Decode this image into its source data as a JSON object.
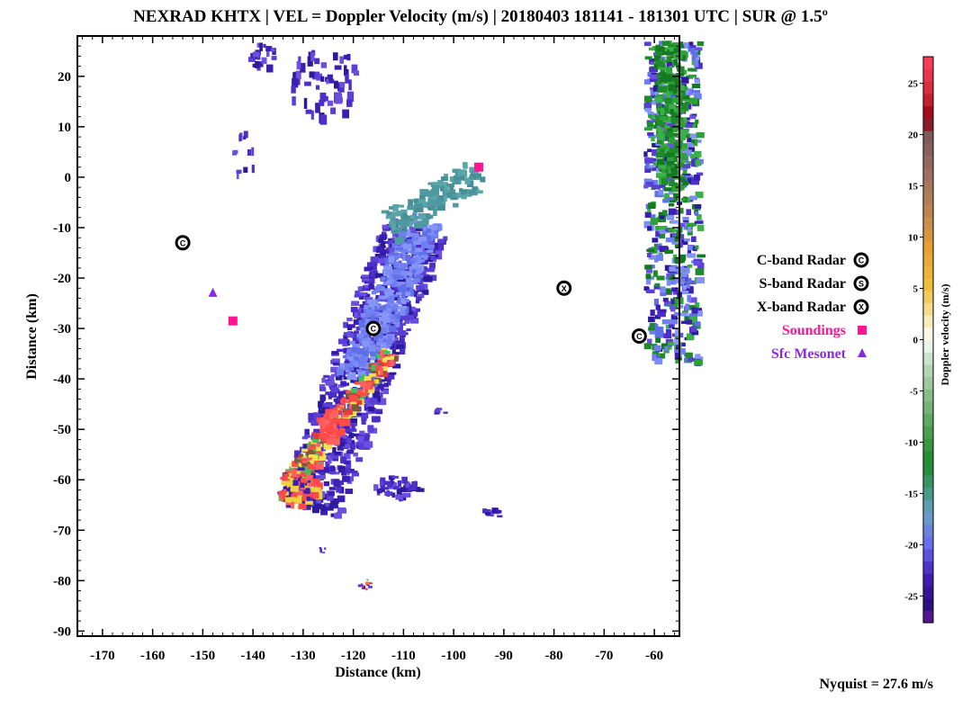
{
  "chart_data": {
    "type": "heatmap",
    "title": "NEXRAD KHTX | VEL = Doppler Velocity (m/s) | 20180403 181141 - 181301 UTC | SUR @ 1.5º",
    "xlabel": "Distance (km)",
    "ylabel": "Distance (km)",
    "xlim": [
      -175,
      -55
    ],
    "ylim": [
      -91,
      28
    ],
    "xticks": [
      -170,
      -160,
      -150,
      -140,
      -130,
      -120,
      -110,
      -100,
      -90,
      -80,
      -70,
      -60
    ],
    "yticks": [
      20,
      10,
      0,
      -10,
      -20,
      -30,
      -40,
      -50,
      -60,
      -70,
      -80,
      -90
    ],
    "colorbar": {
      "label": "Doppler velocity (m/s)",
      "range": [
        -27.6,
        27.6
      ],
      "ticks": [
        25,
        20,
        15,
        10,
        5,
        0,
        -5,
        -10,
        -15,
        -20,
        -25
      ]
    },
    "legend": {
      "placement": "right",
      "entries": [
        {
          "label": "C-band Radar",
          "marker": "C",
          "color": "#000000"
        },
        {
          "label": "S-band Radar",
          "marker": "S",
          "color": "#000000"
        },
        {
          "label": "X-band Radar",
          "marker": "X",
          "color": "#000000"
        },
        {
          "label": "Soundings",
          "marker": "square",
          "color": "#ff1493"
        },
        {
          "label": "Sfc Mesonet",
          "marker": "triangle",
          "color": "#8a2be2"
        }
      ]
    },
    "markers": [
      {
        "kind": "C",
        "x": -154,
        "y": -13
      },
      {
        "kind": "C",
        "x": -116,
        "y": -30
      },
      {
        "kind": "C",
        "x": -63,
        "y": -31.5
      },
      {
        "kind": "X",
        "x": -78,
        "y": -22
      },
      {
        "kind": "square",
        "x": -144,
        "y": -28.5
      },
      {
        "kind": "square",
        "x": -95,
        "y": 2
      },
      {
        "kind": "triangle",
        "x": -148,
        "y": -23
      }
    ],
    "annotation": "Nyquist = 27.6 m/s"
  }
}
